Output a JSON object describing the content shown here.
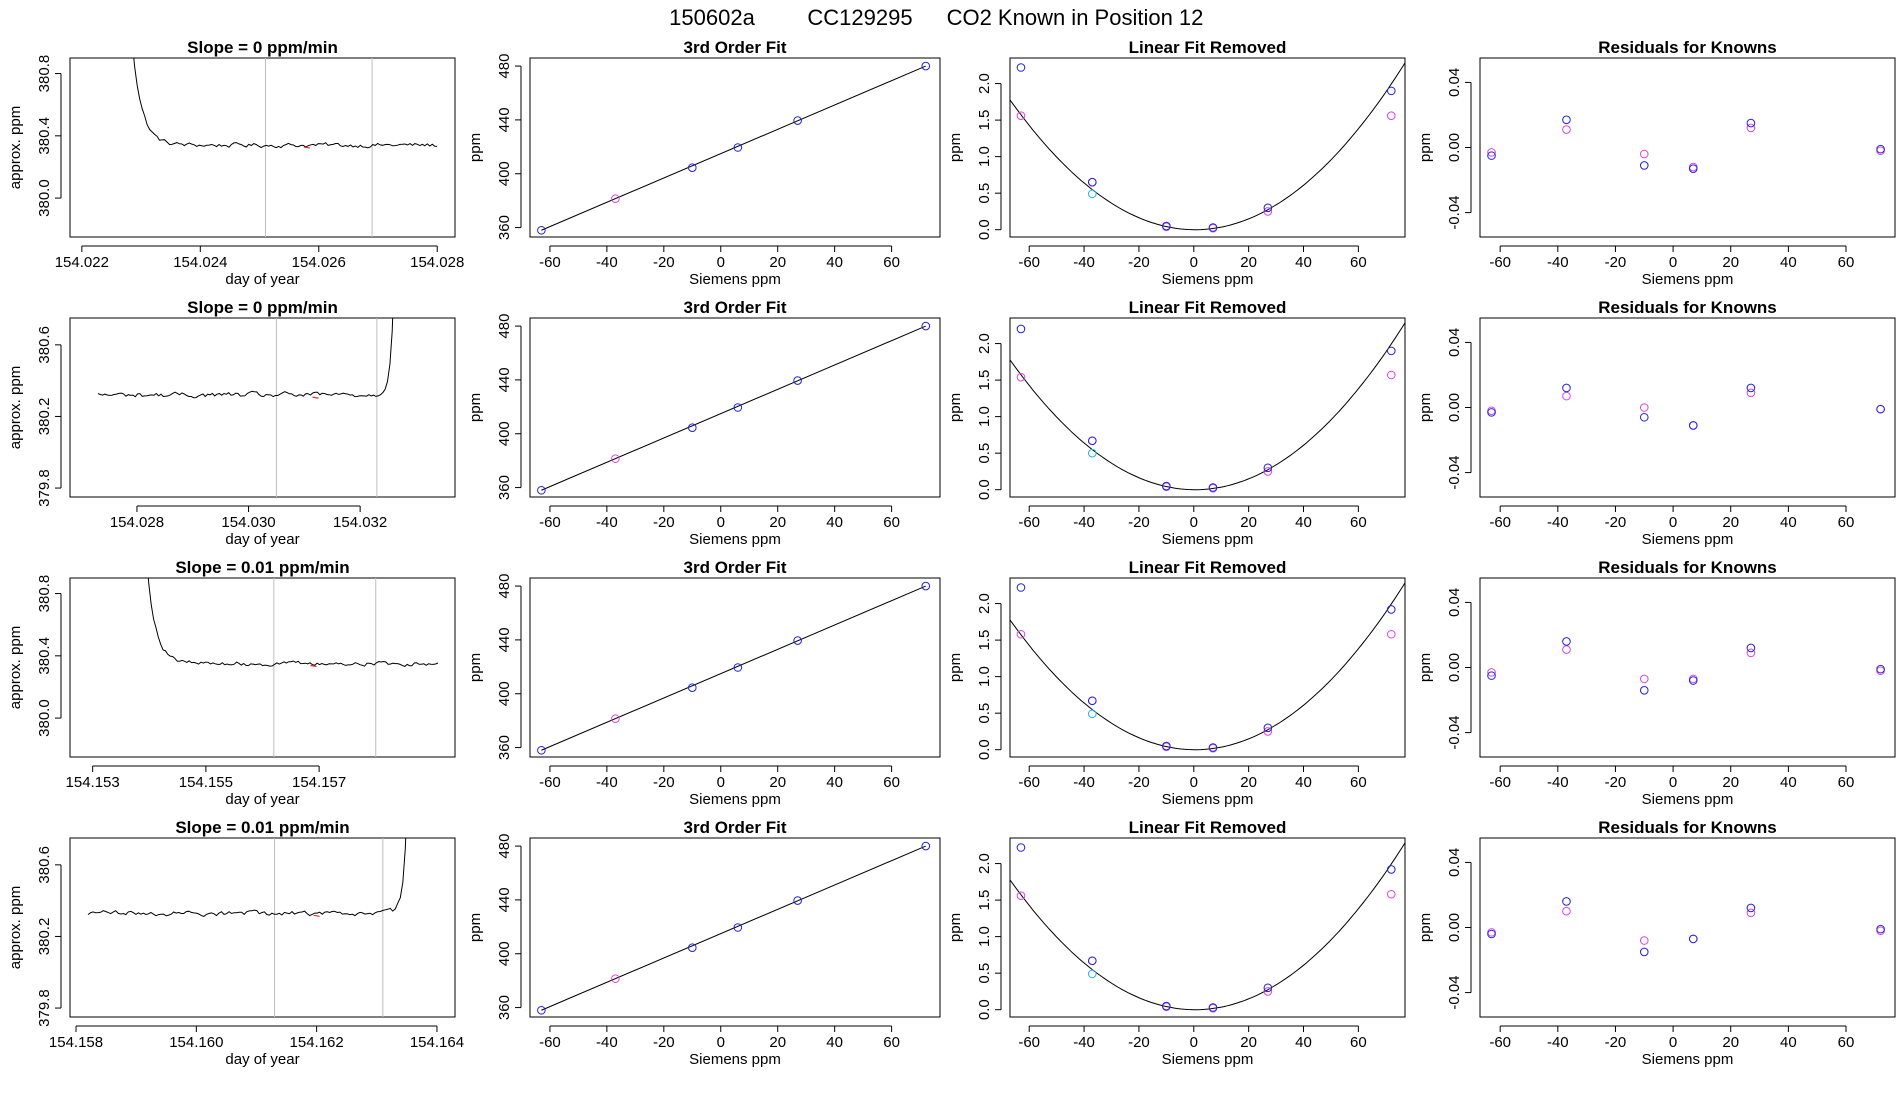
{
  "figure": {
    "title_parts": [
      "150602a",
      "CC129295",
      "CO2 Known in Position  12"
    ]
  },
  "colors": {
    "axis": "#000000",
    "trace": "#000000",
    "vline": "#bebebe",
    "point_blue": "#2020e0",
    "point_magenta": "#e040e0",
    "point_cyan": "#1eb4e6",
    "marker_red": "#e03030"
  },
  "chart_data": [
    {
      "type": "line",
      "panel": "timeseries",
      "row": 0,
      "title": "Slope =  0  ppm/min",
      "xlabel": "day of year",
      "ylabel": "approx. ppm",
      "xlim": [
        154.0218,
        154.0283
      ],
      "ylim": [
        379.75,
        380.9
      ],
      "xticks": [
        154.022,
        154.024,
        154.026,
        154.028
      ],
      "xtick_decimals": 3,
      "yticks": [
        380.0,
        380.4,
        380.8
      ],
      "ytick_decimals": 1,
      "vlines": [
        154.0251,
        154.0269
      ],
      "trace": {
        "x_start": 154.0226,
        "x_end": 154.028,
        "n": 130,
        "base": 380.34,
        "noise": 0.012,
        "rise": {
          "amp": 3.2,
          "tau": 0.00016,
          "at": "start"
        }
      },
      "red_marks": [
        154.0258
      ]
    },
    {
      "type": "line",
      "panel": "fit3",
      "row": 0,
      "title": "3rd Order Fit",
      "xlabel": "Siemens ppm",
      "ylabel": "ppm",
      "xlim": [
        -67,
        77
      ],
      "ylim": [
        353,
        486
      ],
      "xticks": [
        -60,
        -40,
        -20,
        0,
        20,
        40,
        60
      ],
      "yticks": [
        360,
        400,
        440,
        480
      ],
      "points_blue": [
        [
          -63,
          358.0
        ],
        [
          -10,
          404.5
        ],
        [
          6,
          419.5
        ],
        [
          27,
          439.5
        ],
        [
          72,
          480.0
        ]
      ],
      "points_magenta": [
        [
          -37,
          381.5
        ]
      ],
      "line": [
        [
          -63,
          358.0
        ],
        [
          72,
          480.0
        ]
      ]
    },
    {
      "type": "scatter",
      "panel": "linear_removed",
      "row": 0,
      "title": "Linear Fit Removed",
      "xlabel": "Siemens ppm",
      "ylabel": "ppm",
      "xlim": [
        -67,
        77
      ],
      "ylim": [
        -0.1,
        2.35
      ],
      "xticks": [
        -60,
        -40,
        -20,
        0,
        20,
        40,
        60
      ],
      "yticks": [
        0.0,
        0.5,
        1.0,
        1.5,
        2.0
      ],
      "ytick_decimals": 1,
      "points_blue": [
        [
          -63,
          2.22
        ],
        [
          -37,
          0.65
        ],
        [
          -10,
          0.05
        ],
        [
          7,
          0.03
        ],
        [
          27,
          0.3
        ],
        [
          72,
          1.9
        ]
      ],
      "points_magenta": [
        [
          -63,
          1.56
        ],
        [
          -37,
          0.65
        ],
        [
          -10,
          0.04
        ],
        [
          7,
          0.02
        ],
        [
          27,
          0.25
        ],
        [
          72,
          1.56
        ]
      ],
      "points_cyan": [
        [
          -37,
          0.49
        ]
      ],
      "curve": {
        "a": 0.00039,
        "x0": 0.5,
        "c": 0.0
      }
    },
    {
      "type": "scatter",
      "panel": "residuals",
      "row": 0,
      "title": "Residuals for Knowns",
      "xlabel": "Siemens ppm",
      "ylabel": "ppm",
      "xlim": [
        -67,
        77
      ],
      "ylim": [
        -0.055,
        0.055
      ],
      "xticks": [
        -60,
        -40,
        -20,
        0,
        20,
        40,
        60
      ],
      "yticks": [
        -0.04,
        0.0,
        0.04
      ],
      "ytick_decimals": 2,
      "points_blue": [
        [
          -63,
          -0.005
        ],
        [
          -37,
          0.017
        ],
        [
          -10,
          -0.011
        ],
        [
          7,
          -0.013
        ],
        [
          27,
          0.015
        ],
        [
          72,
          -0.001
        ]
      ],
      "points_magenta": [
        [
          -63,
          -0.003
        ],
        [
          -37,
          0.011
        ],
        [
          -10,
          -0.004
        ],
        [
          7,
          -0.012
        ],
        [
          27,
          0.012
        ],
        [
          72,
          -0.002
        ]
      ]
    },
    {
      "type": "line",
      "panel": "timeseries",
      "row": 1,
      "title": "Slope =  0  ppm/min",
      "xlabel": "day of year",
      "ylabel": "approx. ppm",
      "xlim": [
        154.0268,
        154.0337
      ],
      "ylim": [
        379.75,
        380.75
      ],
      "xticks": [
        154.028,
        154.03,
        154.032
      ],
      "xtick_decimals": 3,
      "yticks": [
        379.8,
        380.2,
        380.6
      ],
      "ytick_decimals": 1,
      "vlines": [
        154.0305,
        154.0323
      ],
      "trace": {
        "x_start": 154.0273,
        "x_end": 154.0327,
        "n": 130,
        "base": 380.32,
        "noise": 0.012,
        "rise": {
          "amp": 3.0,
          "tau": 6e-05,
          "at": "end"
        }
      },
      "red_marks": [
        154.0312
      ]
    },
    {
      "type": "line",
      "panel": "fit3",
      "row": 1,
      "title": "3rd Order Fit",
      "xlabel": "Siemens ppm",
      "ylabel": "ppm",
      "xlim": [
        -67,
        77
      ],
      "ylim": [
        353,
        486
      ],
      "xticks": [
        -60,
        -40,
        -20,
        0,
        20,
        40,
        60
      ],
      "yticks": [
        360,
        400,
        440,
        480
      ],
      "points_blue": [
        [
          -63,
          358.0
        ],
        [
          -10,
          404.5
        ],
        [
          6,
          419.5
        ],
        [
          27,
          439.5
        ],
        [
          72,
          480.0
        ]
      ],
      "points_magenta": [
        [
          -37,
          381.5
        ]
      ],
      "line": [
        [
          -63,
          358.0
        ],
        [
          72,
          480.0
        ]
      ]
    },
    {
      "type": "scatter",
      "panel": "linear_removed",
      "row": 1,
      "title": "Linear Fit Removed",
      "xlabel": "Siemens ppm",
      "ylabel": "ppm",
      "xlim": [
        -67,
        77
      ],
      "ylim": [
        -0.1,
        2.35
      ],
      "xticks": [
        -60,
        -40,
        -20,
        0,
        20,
        40,
        60
      ],
      "yticks": [
        0.0,
        0.5,
        1.0,
        1.5,
        2.0
      ],
      "ytick_decimals": 1,
      "points_blue": [
        [
          -63,
          2.2
        ],
        [
          -37,
          0.67
        ],
        [
          -10,
          0.05
        ],
        [
          7,
          0.03
        ],
        [
          27,
          0.3
        ],
        [
          72,
          1.9
        ]
      ],
      "points_magenta": [
        [
          -63,
          1.54
        ],
        [
          -37,
          0.67
        ],
        [
          -10,
          0.04
        ],
        [
          7,
          0.02
        ],
        [
          27,
          0.25
        ],
        [
          72,
          1.57
        ]
      ],
      "points_cyan": [
        [
          -37,
          0.5
        ]
      ],
      "curve": {
        "a": 0.00039,
        "x0": 0.5,
        "c": 0.0
      }
    },
    {
      "type": "scatter",
      "panel": "residuals",
      "row": 1,
      "title": "Residuals for Knowns",
      "xlabel": "Siemens ppm",
      "ylabel": "ppm",
      "xlim": [
        -67,
        77
      ],
      "ylim": [
        -0.055,
        0.055
      ],
      "xticks": [
        -60,
        -40,
        -20,
        0,
        20,
        40,
        60
      ],
      "yticks": [
        -0.04,
        0.0,
        0.04
      ],
      "ytick_decimals": 2,
      "points_blue": [
        [
          -63,
          -0.003
        ],
        [
          -37,
          0.012
        ],
        [
          -10,
          -0.006
        ],
        [
          7,
          -0.011
        ],
        [
          27,
          0.012
        ],
        [
          72,
          -0.001
        ]
      ],
      "points_magenta": [
        [
          -63,
          -0.002
        ],
        [
          -37,
          0.007
        ],
        [
          -10,
          0.0
        ],
        [
          7,
          -0.011
        ],
        [
          27,
          0.009
        ],
        [
          72,
          -0.001
        ]
      ]
    },
    {
      "type": "line",
      "panel": "timeseries",
      "row": 2,
      "title": "Slope =  0.01  ppm/min",
      "xlabel": "day of year",
      "ylabel": "approx. ppm",
      "xlim": [
        154.1526,
        154.1594
      ],
      "ylim": [
        379.75,
        380.9
      ],
      "xticks": [
        154.153,
        154.155,
        154.157
      ],
      "xtick_decimals": 3,
      "yticks": [
        380.0,
        380.4,
        380.8
      ],
      "ytick_decimals": 1,
      "vlines": [
        154.1562,
        154.158
      ],
      "trace": {
        "x_start": 154.1537,
        "x_end": 154.1591,
        "n": 130,
        "base": 380.35,
        "noise": 0.012,
        "rise": {
          "amp": 3.2,
          "tau": 0.00016,
          "at": "start"
        }
      },
      "red_marks": [
        154.1569
      ]
    },
    {
      "type": "line",
      "panel": "fit3",
      "row": 2,
      "title": "3rd Order Fit",
      "xlabel": "Siemens ppm",
      "ylabel": "ppm",
      "xlim": [
        -67,
        77
      ],
      "ylim": [
        353,
        486
      ],
      "xticks": [
        -60,
        -40,
        -20,
        0,
        20,
        40,
        60
      ],
      "yticks": [
        360,
        400,
        440,
        480
      ],
      "points_blue": [
        [
          -63,
          358.0
        ],
        [
          -10,
          404.5
        ],
        [
          6,
          419.5
        ],
        [
          27,
          439.5
        ],
        [
          72,
          480.0
        ]
      ],
      "points_magenta": [
        [
          -37,
          381.5
        ]
      ],
      "line": [
        [
          -63,
          358.0
        ],
        [
          72,
          480.0
        ]
      ]
    },
    {
      "type": "scatter",
      "panel": "linear_removed",
      "row": 2,
      "title": "Linear Fit Removed",
      "xlabel": "Siemens ppm",
      "ylabel": "ppm",
      "xlim": [
        -67,
        77
      ],
      "ylim": [
        -0.1,
        2.35
      ],
      "xticks": [
        -60,
        -40,
        -20,
        0,
        20,
        40,
        60
      ],
      "yticks": [
        0.0,
        0.5,
        1.0,
        1.5,
        2.0
      ],
      "ytick_decimals": 1,
      "points_blue": [
        [
          -63,
          2.22
        ],
        [
          -37,
          0.67
        ],
        [
          -10,
          0.05
        ],
        [
          7,
          0.03
        ],
        [
          27,
          0.3
        ],
        [
          72,
          1.92
        ]
      ],
      "points_magenta": [
        [
          -63,
          1.58
        ],
        [
          -37,
          0.67
        ],
        [
          -10,
          0.04
        ],
        [
          7,
          0.02
        ],
        [
          27,
          0.25
        ],
        [
          72,
          1.58
        ]
      ],
      "points_cyan": [
        [
          -37,
          0.49
        ]
      ],
      "curve": {
        "a": 0.00039,
        "x0": 0.5,
        "c": 0.0
      }
    },
    {
      "type": "scatter",
      "panel": "residuals",
      "row": 2,
      "title": "Residuals for Knowns",
      "xlabel": "Siemens ppm",
      "ylabel": "ppm",
      "xlim": [
        -67,
        77
      ],
      "ylim": [
        -0.055,
        0.055
      ],
      "xticks": [
        -60,
        -40,
        -20,
        0,
        20,
        40,
        60
      ],
      "yticks": [
        -0.04,
        0.0,
        0.04
      ],
      "ytick_decimals": 2,
      "points_blue": [
        [
          -63,
          -0.005
        ],
        [
          -37,
          0.016
        ],
        [
          -10,
          -0.014
        ],
        [
          7,
          -0.008
        ],
        [
          27,
          0.012
        ],
        [
          72,
          -0.001
        ]
      ],
      "points_magenta": [
        [
          -63,
          -0.003
        ],
        [
          -37,
          0.011
        ],
        [
          -10,
          -0.007
        ],
        [
          7,
          -0.007
        ],
        [
          27,
          0.009
        ],
        [
          72,
          -0.002
        ]
      ]
    },
    {
      "type": "line",
      "panel": "timeseries",
      "row": 3,
      "title": "Slope =  0.01  ppm/min",
      "xlabel": "day of year",
      "ylabel": "approx. ppm",
      "xlim": [
        154.1579,
        154.1643
      ],
      "ylim": [
        379.75,
        380.75
      ],
      "xticks": [
        154.158,
        154.16,
        154.162,
        154.164
      ],
      "xtick_decimals": 3,
      "yticks": [
        379.8,
        380.2,
        380.6
      ],
      "ytick_decimals": 1,
      "vlines": [
        154.1613,
        154.1631
      ],
      "trace": {
        "x_start": 154.1582,
        "x_end": 154.1636,
        "n": 130,
        "base": 380.33,
        "noise": 0.012,
        "rise": {
          "amp": 3.0,
          "tau": 6e-05,
          "at": "end"
        }
      },
      "red_marks": [
        154.162
      ]
    },
    {
      "type": "line",
      "panel": "fit3",
      "row": 3,
      "title": "3rd Order Fit",
      "xlabel": "Siemens ppm",
      "ylabel": "ppm",
      "xlim": [
        -67,
        77
      ],
      "ylim": [
        353,
        486
      ],
      "xticks": [
        -60,
        -40,
        -20,
        0,
        20,
        40,
        60
      ],
      "yticks": [
        360,
        400,
        440,
        480
      ],
      "points_blue": [
        [
          -63,
          358.0
        ],
        [
          -10,
          404.5
        ],
        [
          6,
          419.5
        ],
        [
          27,
          439.5
        ],
        [
          72,
          480.0
        ]
      ],
      "points_magenta": [
        [
          -37,
          381.5
        ]
      ],
      "line": [
        [
          -63,
          358.0
        ],
        [
          72,
          480.0
        ]
      ]
    },
    {
      "type": "scatter",
      "panel": "linear_removed",
      "row": 3,
      "title": "Linear Fit Removed",
      "xlabel": "Siemens ppm",
      "ylabel": "ppm",
      "xlim": [
        -67,
        77
      ],
      "ylim": [
        -0.1,
        2.35
      ],
      "xticks": [
        -60,
        -40,
        -20,
        0,
        20,
        40,
        60
      ],
      "yticks": [
        0.0,
        0.5,
        1.0,
        1.5,
        2.0
      ],
      "ytick_decimals": 1,
      "points_blue": [
        [
          -63,
          2.22
        ],
        [
          -37,
          0.67
        ],
        [
          -10,
          0.05
        ],
        [
          7,
          0.03
        ],
        [
          27,
          0.3
        ],
        [
          72,
          1.92
        ]
      ],
      "points_magenta": [
        [
          -63,
          1.56
        ],
        [
          -37,
          0.67
        ],
        [
          -10,
          0.04
        ],
        [
          7,
          0.02
        ],
        [
          27,
          0.25
        ],
        [
          72,
          1.58
        ]
      ],
      "points_cyan": [
        [
          -37,
          0.49
        ]
      ],
      "curve": {
        "a": 0.00039,
        "x0": 0.5,
        "c": 0.0
      }
    },
    {
      "type": "scatter",
      "panel": "residuals",
      "row": 3,
      "title": "Residuals for Knowns",
      "xlabel": "Siemens ppm",
      "ylabel": "ppm",
      "xlim": [
        -67,
        77
      ],
      "ylim": [
        -0.055,
        0.055
      ],
      "xticks": [
        -60,
        -40,
        -20,
        0,
        20,
        40,
        60
      ],
      "yticks": [
        -0.04,
        0.0,
        0.04
      ],
      "ytick_decimals": 2,
      "points_blue": [
        [
          -63,
          -0.004
        ],
        [
          -37,
          0.016
        ],
        [
          -10,
          -0.015
        ],
        [
          7,
          -0.007
        ],
        [
          27,
          0.012
        ],
        [
          72,
          -0.001
        ]
      ],
      "points_magenta": [
        [
          -63,
          -0.003
        ],
        [
          -37,
          0.01
        ],
        [
          -10,
          -0.008
        ],
        [
          7,
          -0.007
        ],
        [
          27,
          0.009
        ],
        [
          72,
          -0.002
        ]
      ]
    }
  ]
}
